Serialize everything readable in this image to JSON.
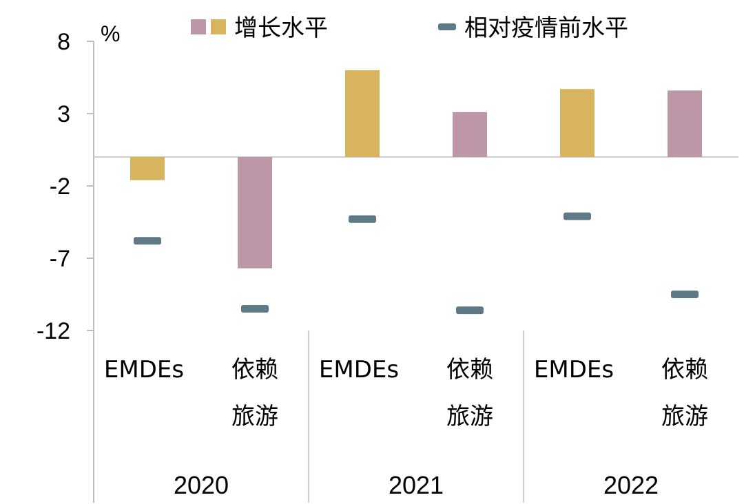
{
  "chart_data": {
    "type": "bar",
    "y_unit": "%",
    "ylim": [
      -12,
      8
    ],
    "yticks": [
      8,
      3,
      -2,
      -7,
      -12
    ],
    "grid": false,
    "legend_position": "top",
    "legend": [
      {
        "label": "增长水平",
        "swatch_colors": [
          "#BD97A8",
          "#D9B45E"
        ]
      },
      {
        "label": "相对疫情前水平",
        "swatch_colors": [
          "#5F7A86"
        ]
      }
    ],
    "groups": [
      {
        "year": "2020",
        "categories": [
          {
            "label": [
              "EMDEs"
            ],
            "growth": -1.6,
            "vs_prepandemic": -5.8,
            "color": "#D9B45E"
          },
          {
            "label": [
              "依赖",
              "旅游"
            ],
            "growth": -7.7,
            "vs_prepandemic": -10.5,
            "color": "#BD97A8"
          }
        ]
      },
      {
        "year": "2021",
        "categories": [
          {
            "label": [
              "EMDEs"
            ],
            "growth": 6.0,
            "vs_prepandemic": -4.3,
            "color": "#D9B45E"
          },
          {
            "label": [
              "依赖",
              "旅游"
            ],
            "growth": 3.1,
            "vs_prepandemic": -10.6,
            "color": "#BD97A8"
          }
        ]
      },
      {
        "year": "2022",
        "categories": [
          {
            "label": [
              "EMDEs"
            ],
            "growth": 4.7,
            "vs_prepandemic": -4.1,
            "color": "#D9B45E"
          },
          {
            "label": [
              "依赖",
              "旅游"
            ],
            "growth": 4.6,
            "vs_prepandemic": -9.5,
            "color": "#BD97A8"
          }
        ]
      }
    ],
    "marker_color": "#5F7A86"
  }
}
